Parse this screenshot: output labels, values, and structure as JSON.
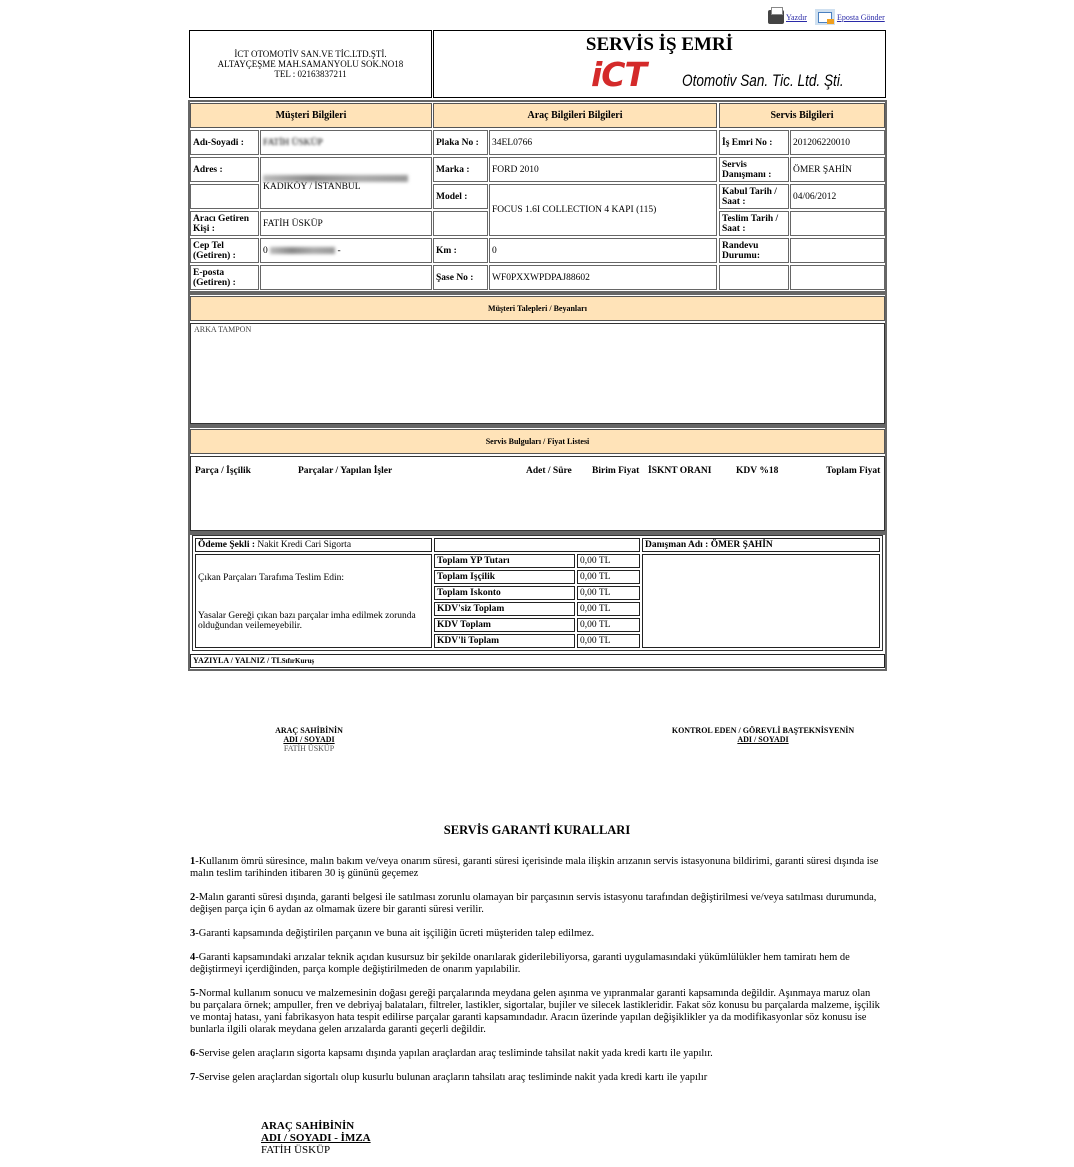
{
  "toolbar": {
    "print_label": "Yazdır",
    "email_label": "Eposta Gönder"
  },
  "company": {
    "name": "İCT OTOMOTİV SAN.VE TİC.LTD.ŞTİ.",
    "address": "ALTAYÇEŞME MAH.SAMANYOLU SOK.NO18",
    "phone": "TEL : 02163837211"
  },
  "header": {
    "title": "SERVİS İŞ EMRİ",
    "logo_mark": "iCT",
    "logo_text": "Otomotiv San. Tic. Ltd. Şti.",
    "logo_color": "#d42a2a"
  },
  "sections": {
    "customer": "Müşteri Bilgileri",
    "vehicle": "Araç Bilgileri Bilgileri",
    "service": "Servis Bilgileri",
    "requests": "Müşteri Talepleri / Beyanları",
    "findings": "Servis Bulguları / Fiyat Listesi"
  },
  "customer": {
    "name_label": "Adı-Soyadi :",
    "name": "FATİH ÜSKÜP",
    "address_label": "Adres :",
    "address": "KADIKÖY / İSTANBUL",
    "brought_by_label": "Aracı Getiren Kişi :",
    "brought_by": "FATİH ÜSKÜP",
    "phone_label": "Cep Tel (Getiren) :",
    "phone_prefix": "0",
    "phone_suffix": "-",
    "email_label": "E-posta (Getiren) :",
    "email": ""
  },
  "vehicle": {
    "plate_label": "Plaka No :",
    "plate": "34EL0766",
    "brand_label": "Marka :",
    "brand": "FORD 2010",
    "model_label": "Model :",
    "model": "FOCUS 1.6I COLLECTION 4 KAPI (115)",
    "km_label": "Km :",
    "km": "0",
    "chassis_label": "Şase No :",
    "chassis": "WF0PXXWPDPAJ88602"
  },
  "service": {
    "order_label": "İş Emri No :",
    "order": "201206220010",
    "advisor_label": "Servis Danışmanı :",
    "advisor": "ÖMER ŞAHİN",
    "accept_label": "Kabul Tarih / Saat :",
    "accept": "04/06/2012",
    "delivery_label": "Teslim Tarih / Saat :",
    "delivery": "",
    "appointment_label": "Randevu Durumu:",
    "appointment": ""
  },
  "requests": {
    "text": "ARKA TAMPON"
  },
  "price_list": {
    "columns": [
      "Parça / İşçilik",
      "Parçalar / Yapılan İşler",
      "Adet / Süre",
      "Birim Fiyat",
      "İSKNT ORANI",
      "KDV %18",
      "Toplam Fiyat"
    ]
  },
  "payment": {
    "method_label": "Ödeme Şekli :",
    "methods": "Nakit  Kredi  Cari  Sigorta",
    "advisor_label": "Danışman Adı :",
    "advisor": "ÖMER ŞAHİN",
    "return_parts": "Çıkan Parçaları Tarafıma Teslim Edin:",
    "legal_note": "Yasalar Gereği çıkan bazı parçalar imha edilmek zorunda olduğundan veilemeyebilir.",
    "totals": [
      {
        "label": "Toplam YP Tutarı",
        "value": "0,00 TL"
      },
      {
        "label": "Toplam Işçilik",
        "value": "0,00 TL"
      },
      {
        "label": "Toplam Iskonto",
        "value": "0,00 TL"
      },
      {
        "label": "KDV'siz Toplam",
        "value": "0,00 TL"
      },
      {
        "label": "KDV Toplam",
        "value": "0,00 TL"
      },
      {
        "label": "KDV'li Toplam",
        "value": "0,00 TL"
      }
    ],
    "in_words_label": "YAZIYLA / YALNIZ / TL",
    "in_words": "SıfırKuruş"
  },
  "signatures": {
    "owner_title": "ARAÇ SAHİBİNİN",
    "owner_sub": "ADI / SOYADI",
    "owner_name": "FATİH ÜSKÜP",
    "inspector_title": "KONTROL EDEN / GÖREVLİ BAŞTEKNİSYENİN",
    "inspector_sub": "ADI / SOYADI"
  },
  "warranty": {
    "title": "SERVİS GARANTİ KURALLARI",
    "rules": [
      {
        "num": "1",
        "text": "-Kullanım ömrü süresince, malın bakım ve/veya onarım süresi, garanti süresi içerisinde mala ilişkin arızanın servis istasyonuna bildirimi, garanti süresi dışında ise malın teslim tarihinden itibaren 30 iş gününü geçemez"
      },
      {
        "num": "2",
        "text": "-Malın garanti süresi dışında, garanti belgesi ile satılması zorunlu olamayan bir parçasının servis istasyonu tarafından değiştirilmesi ve/veya satılması durumunda, değişen parça için 6 aydan az olmamak üzere bir garanti süresi verilir."
      },
      {
        "num": "3",
        "text": "-Garanti kapsamında değiştirilen parçanın ve buna ait işçiliğin ücreti müşteriden talep edilmez."
      },
      {
        "num": "4",
        "text": "-Garanti kapsamındaki arızalar teknik açıdan kusursuz bir şekilde onarılarak giderilebiliyorsa, garanti uygulamasındaki yükümlülükler hem tamiratı hem de değiştirmeyi içerdiğinden, parça komple değiştirilmeden de onarım yapılabilir."
      },
      {
        "num": "5",
        "text": "-Normal kullanım sonucu ve malzemesinin doğası gereği parçalarında meydana gelen aşınma ve yıpranmalar garanti kapsamında değildir. Aşınmaya maruz olan bu parçalara örnek; ampuller, fren ve debriyaj balataları, filtreler, lastikler, sigortalar, bujiler ve silecek lastikleridir. Fakat söz konusu bu parçalarda malzeme, işçilik ve montaj hatası, yani fabrikasyon hata tespit edilirse parçalar garanti kapsamındadır. Aracın üzerinde yapılan değişiklikler ya da modifikasyonlar söz konusu ise bunlarla ilgili olarak meydana gelen arızalarda garanti geçerli değildir."
      },
      {
        "num": "6",
        "text": "-Servise gelen araçların sigorta kapsamı dışında yapılan araçlardan araç tesliminde tahsilat nakit yada kredi kartı ile yapılır."
      },
      {
        "num": "7",
        "text": "-Servise gelen araçlardan sigortalı olup kusurlu bulunan araçların tahsilatı araç tesliminde nakit yada kredi kartı ile yapılır"
      }
    ]
  },
  "footer": {
    "title": "ARAÇ SAHİBİNİN",
    "sub": "ADI / SOYADI - İMZA",
    "name": "FATİH ÜSKÜP"
  }
}
